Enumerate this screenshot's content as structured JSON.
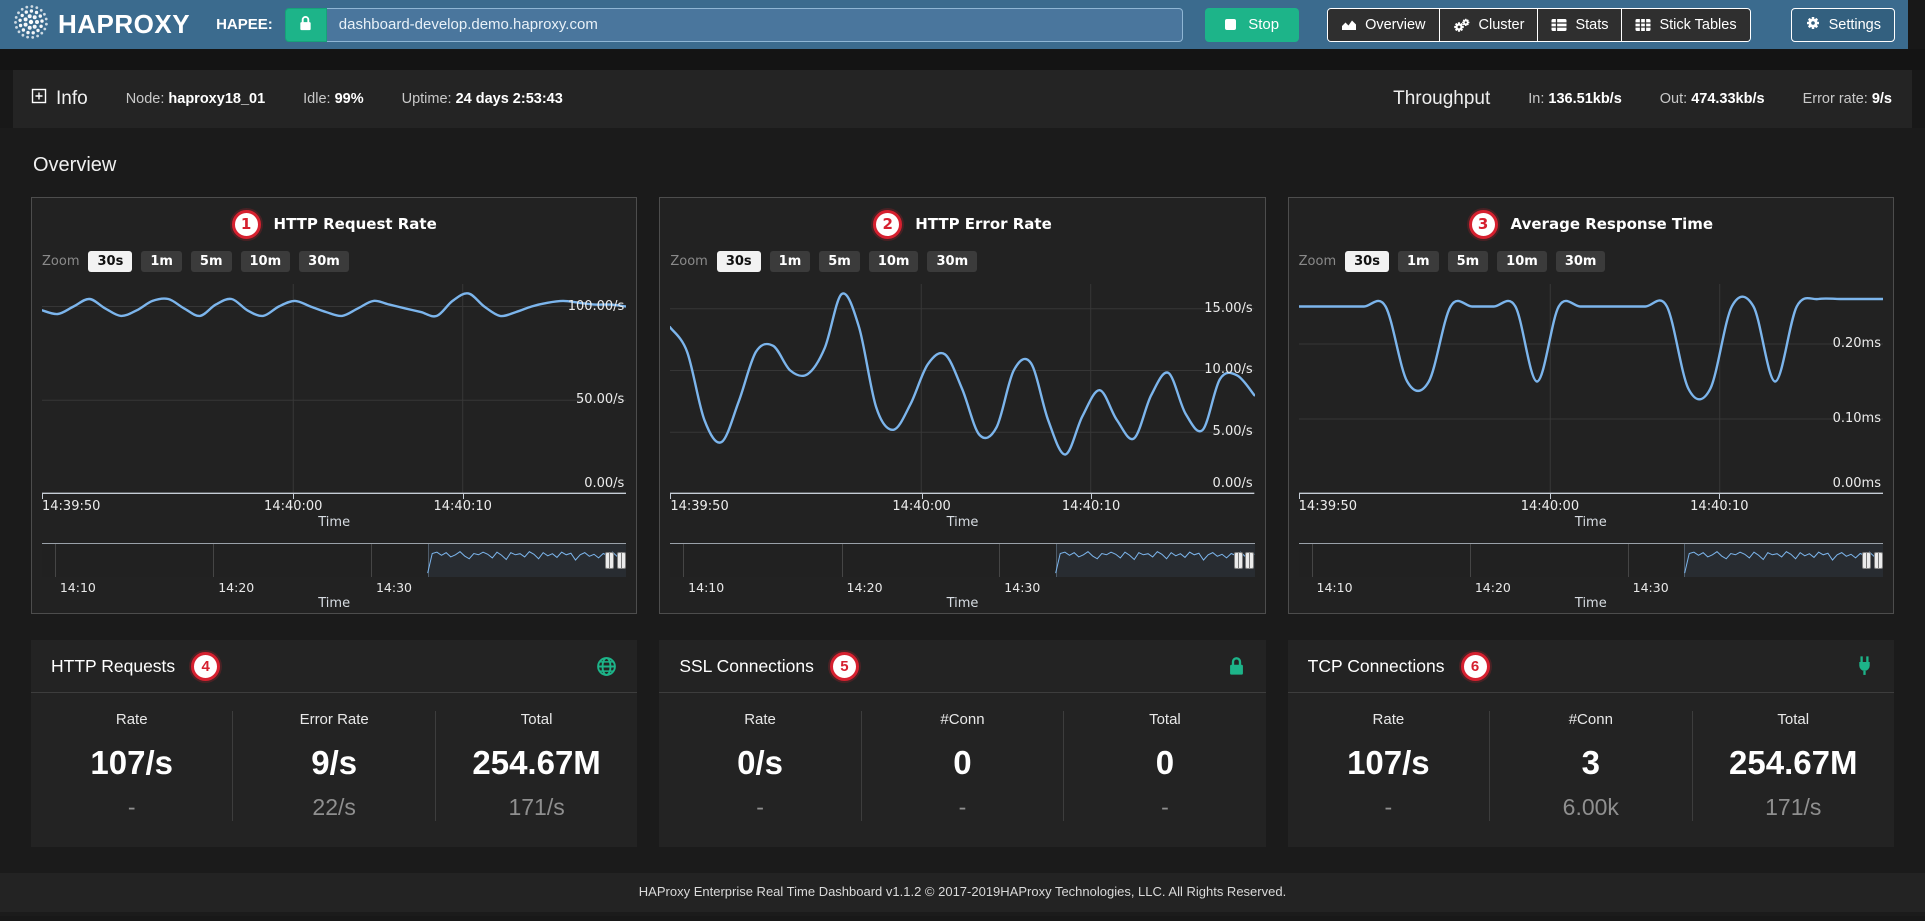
{
  "colors": {
    "navbar_blue": "#3b6b8e",
    "accent_green": "#1db489",
    "badge_red": "#d6202f",
    "chart_line_blue": "#7cb5ec",
    "panel_dark": "#222222"
  },
  "navbar": {
    "brand": "HAPROXY",
    "hapee_label": "HAPEE:",
    "url_value": "dashboard-develop.demo.haproxy.com",
    "stop_label": "Stop",
    "nav_buttons": [
      {
        "label": "Overview",
        "icon": "chart-area-icon"
      },
      {
        "label": "Cluster",
        "icon": "gears-icon"
      },
      {
        "label": "Stats",
        "icon": "table-icon"
      },
      {
        "label": "Stick Tables",
        "icon": "grid-icon"
      }
    ],
    "settings_label": "Settings"
  },
  "info_bar": {
    "info_label": "Info",
    "fields": [
      {
        "label": "Node:",
        "value": "haproxy18_01"
      },
      {
        "label": "Idle:",
        "value": "99%"
      },
      {
        "label": "Uptime:",
        "value": "24 days 2:53:43"
      }
    ],
    "throughput_label": "Throughput",
    "throughput_fields": [
      {
        "label": "In:",
        "value": "136.51kb/s"
      },
      {
        "label": "Out:",
        "value": "474.33kb/s"
      },
      {
        "label": "Error rate:",
        "value": "9/s"
      }
    ]
  },
  "section_title": "Overview",
  "zoom_controls": {
    "label": "Zoom",
    "options": [
      "30s",
      "1m",
      "5m",
      "10m",
      "30m"
    ],
    "selected": "30s"
  },
  "chart_data": [
    {
      "type": "line",
      "number": "1",
      "title": "HTTP Request Rate",
      "xlabel": "Time",
      "ylim": [
        0,
        112
      ],
      "yticks": [
        {
          "v": 0,
          "label": "0.00/s"
        },
        {
          "v": 50,
          "label": "50.00/s"
        },
        {
          "v": 100,
          "label": "100.00/s"
        }
      ],
      "xticks": [
        {
          "pos": 0,
          "label": "14:39:50"
        },
        {
          "pos": 0.43,
          "label": "14:40:00"
        },
        {
          "pos": 0.72,
          "label": "14:40:10"
        }
      ],
      "values": [
        98,
        96,
        100,
        104,
        99,
        95,
        98,
        103,
        104,
        99,
        95,
        101,
        104,
        98,
        95,
        100,
        103,
        100,
        97,
        95,
        99,
        103,
        101,
        99,
        97,
        95,
        103,
        107,
        100,
        95,
        97,
        100,
        102,
        103,
        102,
        101,
        101,
        100
      ],
      "navigator": {
        "xticks": [
          {
            "pos": 0.022,
            "label": "14:10"
          },
          {
            "pos": 0.293,
            "label": "14:20"
          },
          {
            "pos": 0.563,
            "label": "14:30"
          }
        ],
        "xlabel": "Time",
        "spark_start": 0.66,
        "values": [
          1,
          0.25,
          0.2,
          0.32,
          0.22,
          0.38,
          0.3,
          0.18,
          0.35,
          0.45,
          0.25,
          0.3,
          0.2,
          0.28,
          0.42,
          0.2,
          0.32,
          0.48,
          0.22,
          0.3,
          0.26,
          0.38,
          0.18,
          0.28,
          0.45,
          0.22,
          0.34,
          0.26,
          0.4,
          0.2,
          0.3,
          0.24,
          0.5,
          0.3,
          0.22,
          0.36,
          0.28,
          0.42,
          0.25,
          0.33,
          0.2,
          0.36,
          0.3,
          0.28
        ]
      }
    },
    {
      "type": "line",
      "number": "2",
      "title": "HTTP Error Rate",
      "xlabel": "Time",
      "ylim": [
        0,
        17
      ],
      "yticks": [
        {
          "v": 0,
          "label": "0.00/s"
        },
        {
          "v": 5,
          "label": "5.00/s"
        },
        {
          "v": 10,
          "label": "10.00/s"
        },
        {
          "v": 15,
          "label": "15.00/s"
        }
      ],
      "xticks": [
        {
          "pos": 0,
          "label": "14:39:50"
        },
        {
          "pos": 0.43,
          "label": "14:40:00"
        },
        {
          "pos": 0.72,
          "label": "14:40:10"
        }
      ],
      "values": [
        13.5,
        11.5,
        6,
        4.2,
        7.5,
        11.5,
        12,
        10,
        9.7,
        11.8,
        16.2,
        13.5,
        7,
        5.2,
        7.3,
        10.5,
        11.3,
        8.5,
        4.8,
        5.4,
        10,
        10.6,
        6,
        3.2,
        6.3,
        8.4,
        6,
        4.5,
        8,
        9.8,
        6.5,
        5.2,
        9.3,
        9.6,
        8
      ],
      "navigator": {
        "xticks": [
          {
            "pos": 0.022,
            "label": "14:10"
          },
          {
            "pos": 0.293,
            "label": "14:20"
          },
          {
            "pos": 0.563,
            "label": "14:30"
          }
        ],
        "xlabel": "Time",
        "spark_start": 0.66,
        "values": [
          1,
          0.25,
          0.2,
          0.32,
          0.22,
          0.38,
          0.3,
          0.18,
          0.35,
          0.45,
          0.25,
          0.3,
          0.2,
          0.28,
          0.42,
          0.2,
          0.32,
          0.48,
          0.22,
          0.3,
          0.26,
          0.38,
          0.18,
          0.28,
          0.45,
          0.22,
          0.34,
          0.26,
          0.4,
          0.2,
          0.3,
          0.24,
          0.5,
          0.3,
          0.22,
          0.36,
          0.28,
          0.42,
          0.25,
          0.33,
          0.2,
          0.36,
          0.3,
          0.28
        ]
      }
    },
    {
      "type": "line",
      "number": "3",
      "title": "Average Response Time",
      "xlabel": "Time",
      "ylim": [
        0,
        0.28
      ],
      "yticks": [
        {
          "v": 0,
          "label": "0.00ms"
        },
        {
          "v": 0.1,
          "label": "0.10ms"
        },
        {
          "v": 0.2,
          "label": "0.20ms"
        }
      ],
      "xticks": [
        {
          "pos": 0,
          "label": "14:39:50"
        },
        {
          "pos": 0.43,
          "label": "14:40:00"
        },
        {
          "pos": 0.72,
          "label": "14:40:10"
        }
      ],
      "values": [
        0.25,
        0.25,
        0.25,
        0.25,
        0.25,
        0.15,
        0.15,
        0.25,
        0.25,
        0.25,
        0.25,
        0.15,
        0.25,
        0.25,
        0.25,
        0.25,
        0.25,
        0.25,
        0.14,
        0.14,
        0.25,
        0.25,
        0.15,
        0.25,
        0.26,
        0.26,
        0.26,
        0.26
      ],
      "navigator": {
        "xticks": [
          {
            "pos": 0.022,
            "label": "14:10"
          },
          {
            "pos": 0.293,
            "label": "14:20"
          },
          {
            "pos": 0.563,
            "label": "14:30"
          }
        ],
        "xlabel": "Time",
        "spark_start": 0.66,
        "values": [
          1,
          0.25,
          0.2,
          0.32,
          0.22,
          0.38,
          0.3,
          0.18,
          0.35,
          0.45,
          0.25,
          0.3,
          0.2,
          0.28,
          0.42,
          0.2,
          0.32,
          0.48,
          0.22,
          0.3,
          0.26,
          0.38,
          0.18,
          0.28,
          0.45,
          0.22,
          0.34,
          0.26,
          0.4,
          0.2,
          0.3,
          0.24,
          0.5,
          0.3,
          0.22,
          0.36,
          0.28,
          0.42,
          0.25,
          0.33,
          0.2,
          0.36,
          0.3,
          0.28
        ]
      }
    }
  ],
  "cards": [
    {
      "number": "4",
      "title": "HTTP Requests",
      "icon": "globe-icon",
      "columns": [
        {
          "label": "Rate",
          "value": "107/s",
          "sub": "-"
        },
        {
          "label": "Error Rate",
          "value": "9/s",
          "sub": "22/s"
        },
        {
          "label": "Total",
          "value": "254.67M",
          "sub": "171/s"
        }
      ]
    },
    {
      "number": "5",
      "title": "SSL Connections",
      "icon": "lock-icon",
      "columns": [
        {
          "label": "Rate",
          "value": "0/s",
          "sub": "-"
        },
        {
          "label": "#Conn",
          "value": "0",
          "sub": "-"
        },
        {
          "label": "Total",
          "value": "0",
          "sub": "-"
        }
      ]
    },
    {
      "number": "6",
      "title": "TCP Connections",
      "icon": "plug-icon",
      "columns": [
        {
          "label": "Rate",
          "value": "107/s",
          "sub": "-"
        },
        {
          "label": "#Conn",
          "value": "3",
          "sub": "6.00k"
        },
        {
          "label": "Total",
          "value": "254.67M",
          "sub": "171/s"
        }
      ]
    }
  ],
  "footer": {
    "text": "HAProxy Enterprise Real Time Dashboard v1.1.2 © 2017-2019HAProxy Technologies, LLC. All Rights Reserved."
  }
}
